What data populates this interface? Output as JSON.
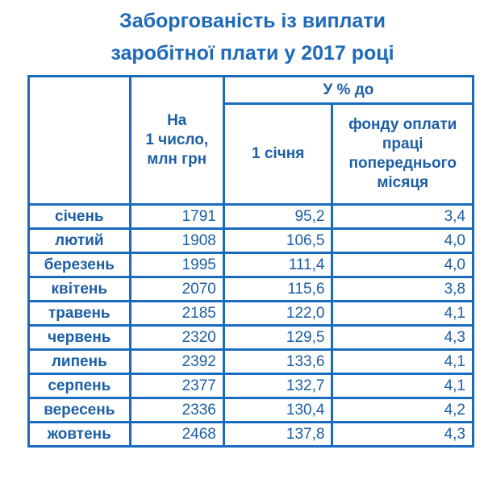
{
  "chart_data": {
    "type": "table",
    "title": [
      "Заборгованість із виплати",
      "заробітної плати у 2017 році"
    ],
    "headers": {
      "col1": "",
      "col2": [
        "На",
        "1 число,",
        "млн грн"
      ],
      "group": "У % до",
      "col3": "1 січня",
      "col4": [
        "фонду оплати",
        "праці",
        "попереднього",
        "місяця"
      ]
    },
    "rows": [
      {
        "month": "січень",
        "amount": "1791",
        "jan": "95,2",
        "fund": "3,4"
      },
      {
        "month": "лютий",
        "amount": "1908",
        "jan": "106,5",
        "fund": "4,0"
      },
      {
        "month": "березень",
        "amount": "1995",
        "jan": "111,4",
        "fund": "4,0"
      },
      {
        "month": "квітень",
        "amount": "2070",
        "jan": "115,6",
        "fund": "3,8"
      },
      {
        "month": "травень",
        "amount": "2185",
        "jan": "122,0",
        "fund": "4,1"
      },
      {
        "month": "червень",
        "amount": "2320",
        "jan": "129,5",
        "fund": "4,3"
      },
      {
        "month": "липень",
        "amount": "2392",
        "jan": "133,6",
        "fund": "4,1"
      },
      {
        "month": "серпень",
        "amount": "2377",
        "jan": "132,7",
        "fund": "4,1"
      },
      {
        "month": "вересень",
        "amount": "2336",
        "jan": "130,4",
        "fund": "4,2"
      },
      {
        "month": "жовтень",
        "amount": "2468",
        "jan": "137,8",
        "fund": "4,3"
      }
    ],
    "colors": {
      "text": "#1d5fa6",
      "border": "#1a6bc0",
      "title": "#1f6ab8"
    }
  }
}
